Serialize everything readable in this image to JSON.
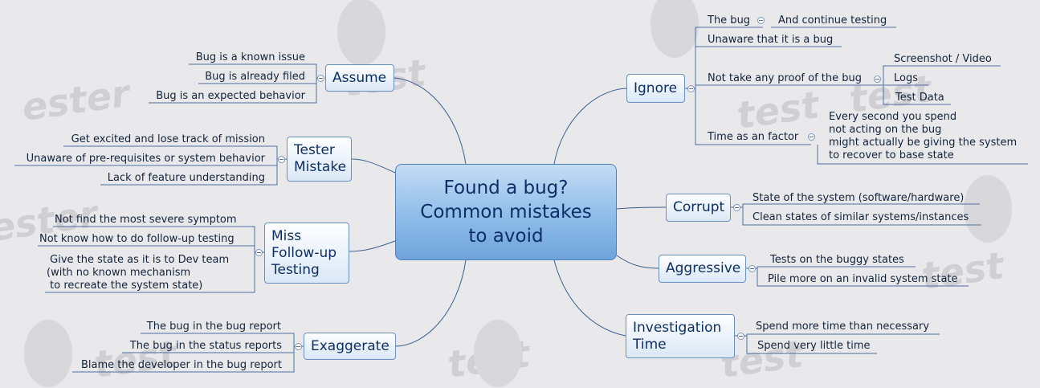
{
  "map": {
    "central_title": "Found a bug?\nCommon mistakes\nto avoid",
    "branches": {
      "assume": {
        "label": "Assume",
        "items": [
          "Bug is a known issue",
          "Bug is already filed",
          "Bug is an expected behavior"
        ]
      },
      "tester_mistake": {
        "label": "Tester\nMistake",
        "items": [
          "Get excited and lose track of mission",
          "Unaware of pre-requisites or system behavior",
          "Lack of feature understanding"
        ]
      },
      "miss_followup": {
        "label": "Miss\nFollow-up\nTesting",
        "items": [
          "Not find the most severe symptom",
          "Not know how to do follow-up testing",
          " Give the state as it is to Dev team\n(with no known mechanism\n to recreate the system state)"
        ]
      },
      "exaggerate": {
        "label": "Exaggerate",
        "items": [
          "The bug in the bug report",
          "The bug in the status reports",
          "Blame the developer in the bug report"
        ]
      },
      "ignore": {
        "label": "Ignore",
        "items": [
          "The bug",
          "Unaware that it is a bug",
          "Not take any proof of the bug",
          "Time as an factor"
        ],
        "the_bug_child": "And continue testing",
        "proof_children": [
          "Screenshot / Video",
          "Logs",
          "Test Data"
        ],
        "time_child": "Every second you spend\nnot acting on the bug\nmight actually be giving the system\nto recover to base state"
      },
      "corrupt": {
        "label": "Corrupt",
        "items": [
          "State of the system (software/hardware)",
          "Clean states of similar systems/instances"
        ]
      },
      "aggressive": {
        "label": "Aggressive",
        "items": [
          "Tests on the buggy states",
          "Pile more on an invalid system state"
        ]
      },
      "investigation_time": {
        "label": "Investigation\nTime",
        "items": [
          "Spend more time than necessary",
          "Spend very little time"
        ]
      }
    }
  },
  "colors": {
    "connector": "#3d5f8f",
    "central_fill": "#8ebce9",
    "topic_border": "#6b8fbf",
    "text": "#0d2f66"
  }
}
